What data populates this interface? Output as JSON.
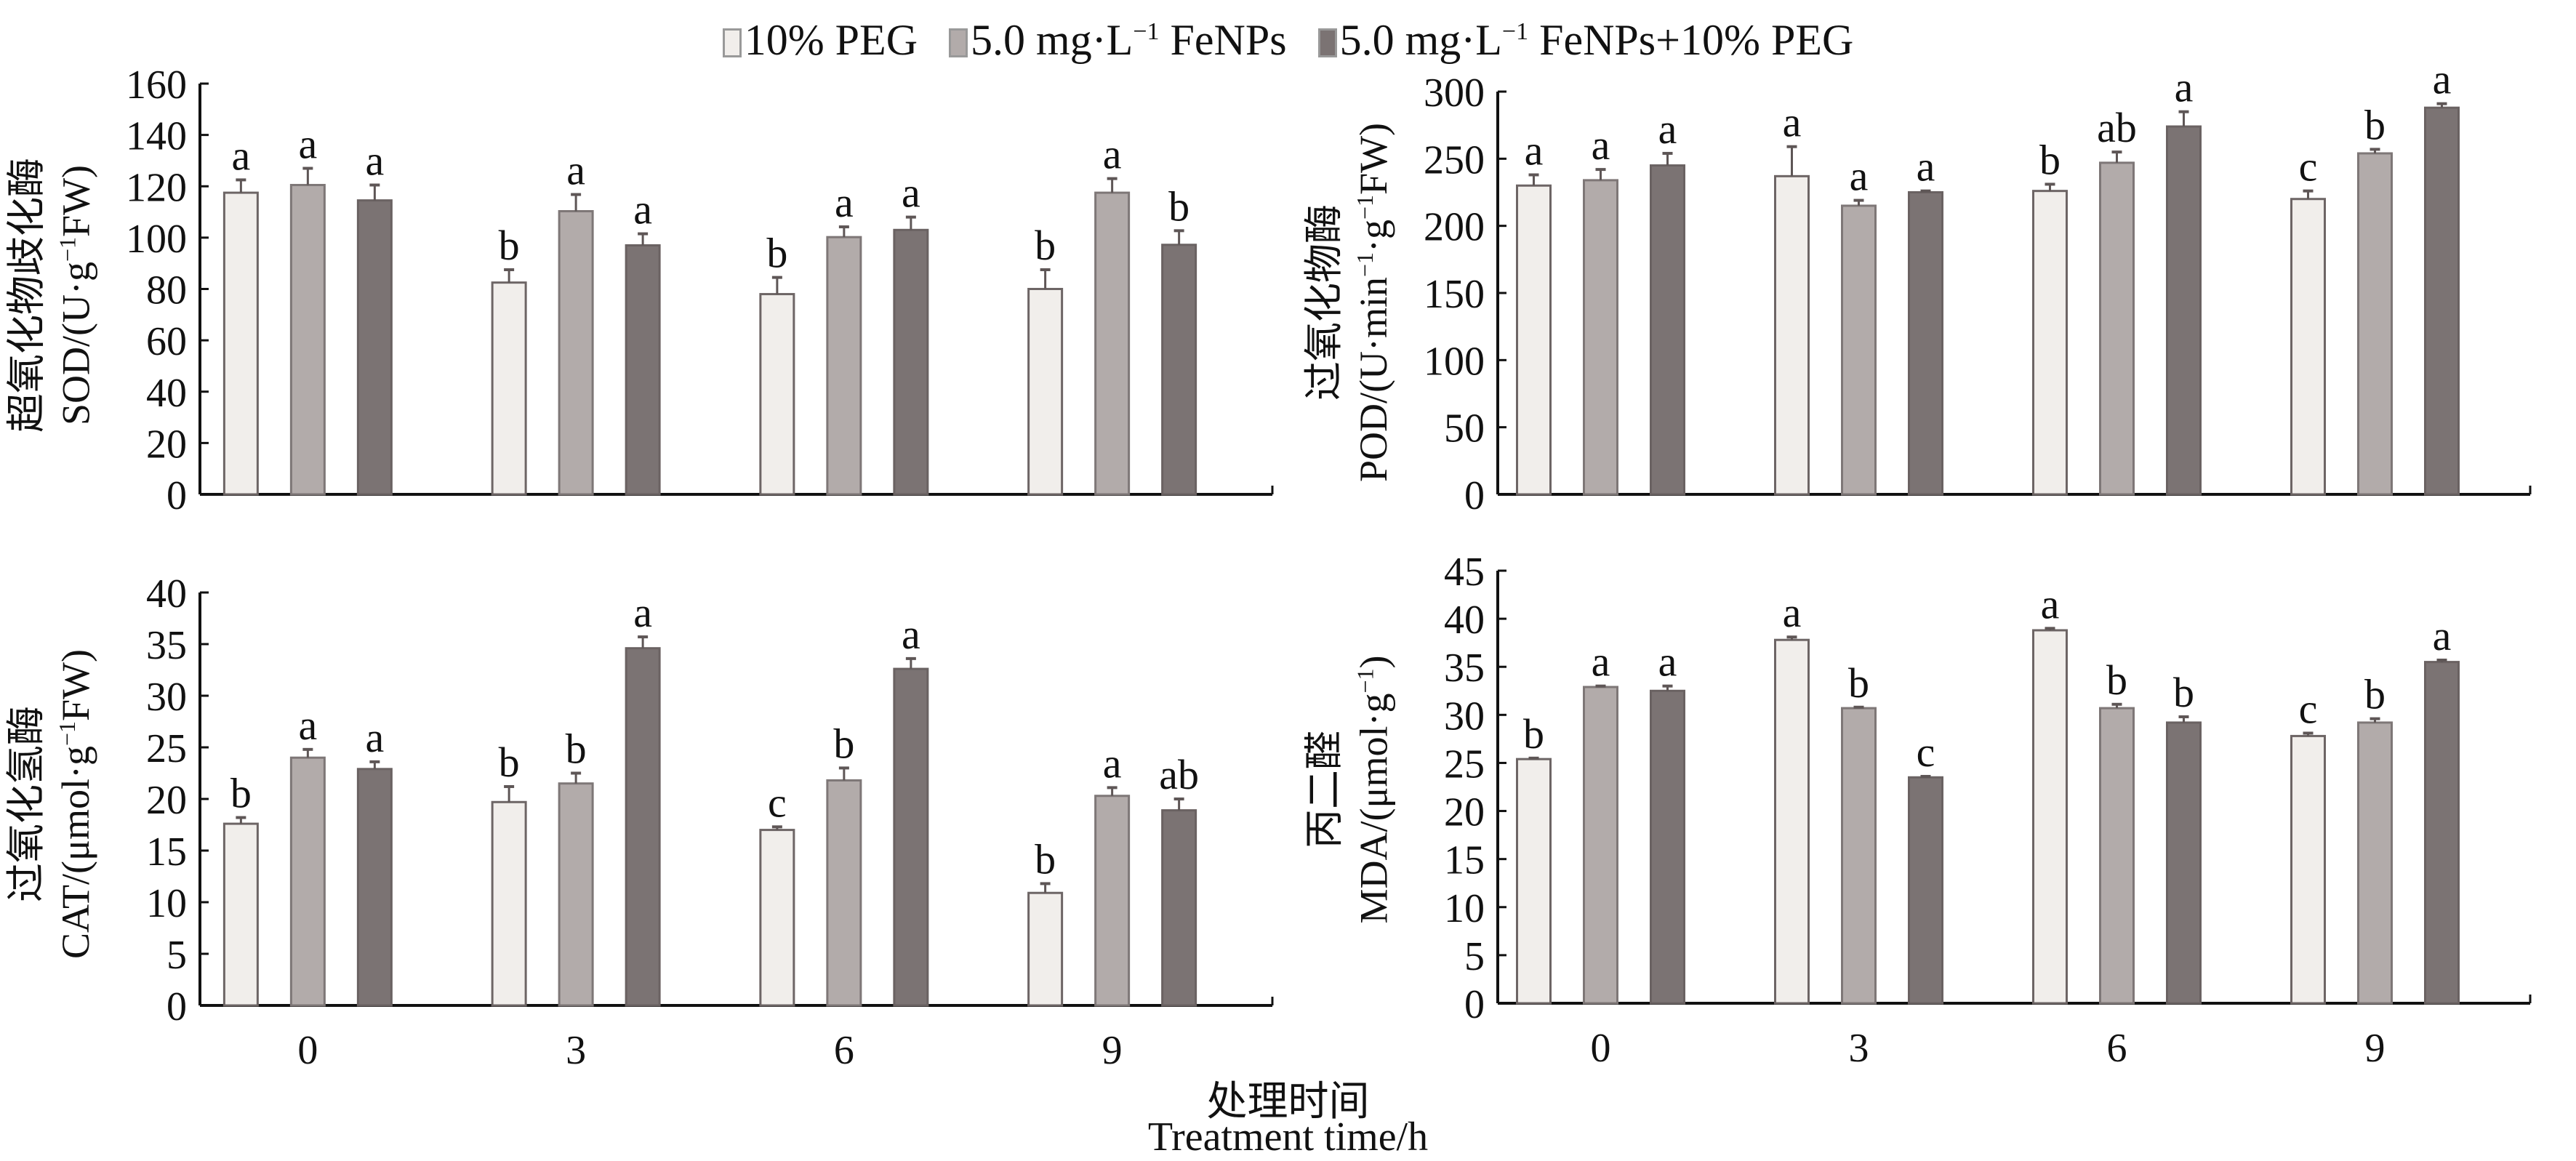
{
  "legend": {
    "items": [
      {
        "label": "10% PEG",
        "color": "#f1eeeb"
      },
      {
        "label_pre": "5.0 mg·L",
        "label_sup": "−1",
        "label_post": " FeNPs",
        "color": "#b2abaa"
      },
      {
        "label_pre": "5.0 mg·L",
        "label_sup": "−1",
        "label_post": " FeNPs+10% PEG",
        "color": "#7b7373"
      }
    ]
  },
  "x_title": {
    "cn": "处理时间",
    "en": "Treatment time/h"
  },
  "chart_data": [
    {
      "type": "bar",
      "panel": "top-left",
      "ylabel_cn": "超氧化物歧化酶",
      "ylabel_en_pre": "SOD/(U·g",
      "ylabel_en_sup": "−1",
      "ylabel_en_post": "FW)",
      "categories": [
        "0",
        "3",
        "6",
        "9"
      ],
      "ylim": [
        0,
        160
      ],
      "yticks": [
        0,
        20,
        40,
        60,
        80,
        100,
        120,
        140,
        160
      ],
      "series": [
        {
          "name": "10% PEG",
          "values": [
            117.5,
            82.5,
            78,
            80
          ],
          "errors": [
            5,
            5,
            6.5,
            7.5
          ],
          "letters": [
            "a",
            "b",
            "b",
            "b"
          ]
        },
        {
          "name": "5.0 mg·L−1 FeNPs",
          "values": [
            120.5,
            110.3,
            100.2,
            117.5
          ],
          "errors": [
            6.5,
            6.5,
            4,
            5.5
          ],
          "letters": [
            "a",
            "a",
            "a",
            "a"
          ]
        },
        {
          "name": "5.0 mg·L−1 FeNPs+10% PEG",
          "values": [
            114.5,
            97,
            103,
            97.2
          ],
          "errors": [
            6,
            4.5,
            5,
            5.5
          ],
          "letters": [
            "a",
            "a",
            "a",
            "b"
          ]
        }
      ]
    },
    {
      "type": "bar",
      "panel": "top-right",
      "ylabel_cn": "过氧化物酶",
      "ylabel_en_pre": "POD/(U·min",
      "ylabel_en_sup": "−1",
      "ylabel_en_mid": "·g",
      "ylabel_en_sup2": "−1",
      "ylabel_en_post": "FW)",
      "categories": [
        "0",
        "3",
        "6",
        "9"
      ],
      "ylim": [
        0,
        300
      ],
      "yticks": [
        0,
        50,
        100,
        150,
        200,
        250,
        300
      ],
      "series": [
        {
          "name": "10% PEG",
          "values": [
            230,
            237,
            226,
            220
          ],
          "errors": [
            8,
            22,
            5,
            6
          ],
          "letters": [
            "a",
            "a",
            "b",
            "c"
          ]
        },
        {
          "name": "5.0 mg·L−1 FeNPs",
          "values": [
            234,
            215,
            247,
            254
          ],
          "errors": [
            8,
            4,
            8,
            3
          ],
          "letters": [
            "a",
            "a",
            "ab",
            "b"
          ]
        },
        {
          "name": "5.0 mg·L−1 FeNPs+10% PEG",
          "values": [
            245,
            225,
            274,
            288
          ],
          "errors": [
            9,
            1,
            11,
            3
          ],
          "letters": [
            "a",
            "a",
            "a",
            "a"
          ]
        }
      ]
    },
    {
      "type": "bar",
      "panel": "bottom-left",
      "ylabel_cn": "过氧化氢酶",
      "ylabel_en_pre": "CAT/(μmol·g",
      "ylabel_en_sup": "−1",
      "ylabel_en_post": "FW)",
      "categories": [
        "0",
        "3",
        "6",
        "9"
      ],
      "ylim": [
        0,
        40
      ],
      "yticks": [
        0,
        5,
        10,
        15,
        20,
        25,
        30,
        35,
        40
      ],
      "series": [
        {
          "name": "10% PEG",
          "values": [
            17.6,
            19.7,
            17.0,
            10.9
          ],
          "errors": [
            0.6,
            1.5,
            0.3,
            0.9
          ],
          "letters": [
            "b",
            "b",
            "c",
            "b"
          ]
        },
        {
          "name": "5.0 mg·L−1 FeNPs",
          "values": [
            24.0,
            21.5,
            21.8,
            20.3
          ],
          "errors": [
            0.8,
            1.0,
            1.2,
            0.8
          ],
          "letters": [
            "a",
            "b",
            "b",
            "a"
          ]
        },
        {
          "name": "5.0 mg·L−1 FeNPs+10% PEG",
          "values": [
            22.9,
            34.6,
            32.6,
            18.9
          ],
          "errors": [
            0.7,
            1.1,
            1.0,
            1.1
          ],
          "letters": [
            "a",
            "a",
            "a",
            "ab"
          ]
        }
      ]
    },
    {
      "type": "bar",
      "panel": "bottom-right",
      "ylabel_cn": "丙二醛",
      "ylabel_en_pre": "MDA/(μmol·g",
      "ylabel_en_sup": "−1",
      "ylabel_en_post": ")",
      "categories": [
        "0",
        "3",
        "6",
        "9"
      ],
      "ylim": [
        0,
        45
      ],
      "yticks": [
        0,
        5,
        10,
        15,
        20,
        25,
        30,
        35,
        40,
        45
      ],
      "series": [
        {
          "name": "10% PEG",
          "values": [
            25.4,
            37.8,
            38.8,
            27.8
          ],
          "errors": [
            0.1,
            0.3,
            0.2,
            0.3
          ],
          "letters": [
            "b",
            "a",
            "a",
            "c"
          ]
        },
        {
          "name": "5.0 mg·L−1 FeNPs",
          "values": [
            32.9,
            30.7,
            30.7,
            29.2
          ],
          "errors": [
            0.1,
            0.1,
            0.4,
            0.4
          ],
          "letters": [
            "a",
            "b",
            "b",
            "b"
          ]
        },
        {
          "name": "5.0 mg·L−1 FeNPs+10% PEG",
          "values": [
            32.5,
            23.5,
            29.2,
            35.5
          ],
          "errors": [
            0.5,
            0.1,
            0.6,
            0.2
          ],
          "letters": [
            "a",
            "c",
            "b",
            "a"
          ]
        }
      ]
    }
  ]
}
